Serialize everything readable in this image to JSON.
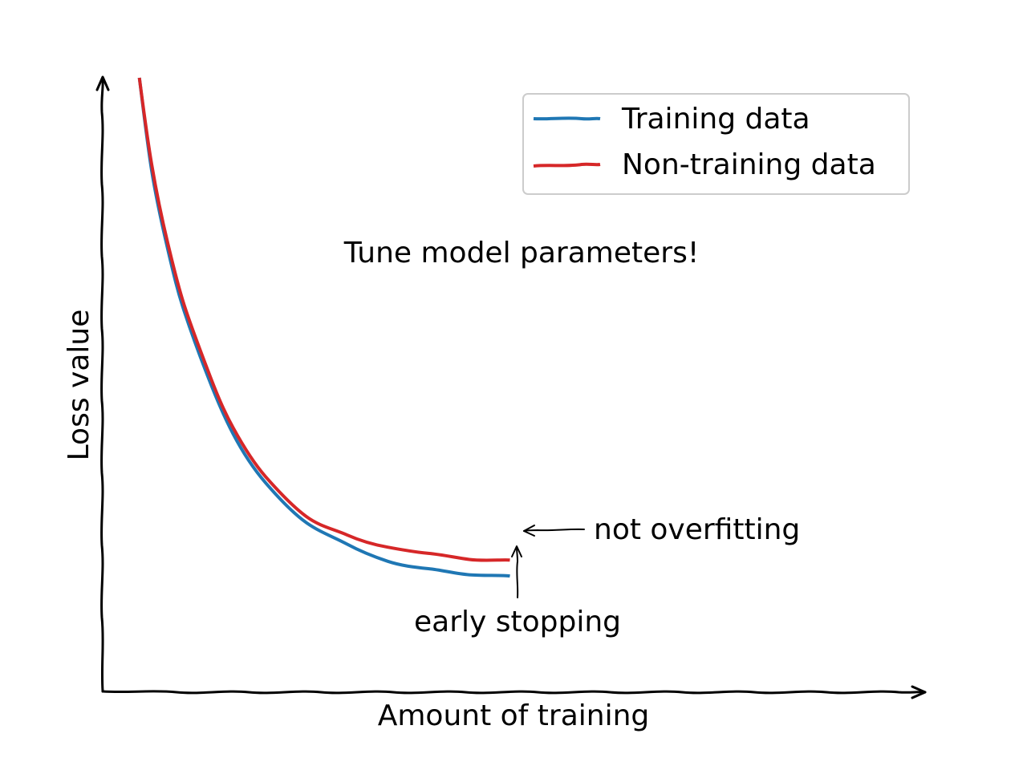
{
  "chart_data": {
    "type": "line",
    "style": "xkcd",
    "xlabel": "Amount of training",
    "ylabel": "Loss value",
    "xlim": [
      0,
      10
    ],
    "ylim": [
      0,
      10
    ],
    "grid": false,
    "ticks": false,
    "legend": {
      "position": "top-right",
      "entries": [
        "Training data",
        "Non-training data"
      ]
    },
    "series": [
      {
        "name": "Training data",
        "color": "#1f77b4",
        "x": [
          0.45,
          0.6,
          0.8,
          1.0,
          1.3,
          1.6,
          2.0,
          2.5,
          3.0,
          3.5,
          4.0,
          4.5,
          5.0
        ],
        "y": [
          10.0,
          8.5,
          7.2,
          6.2,
          5.1,
          4.2,
          3.4,
          2.75,
          2.4,
          2.12,
          2.0,
          1.9,
          1.88
        ]
      },
      {
        "name": "Non-training data",
        "color": "#d62728",
        "x": [
          0.45,
          0.6,
          0.8,
          1.0,
          1.3,
          1.6,
          2.0,
          2.5,
          3.0,
          3.5,
          4.0,
          4.5,
          5.0
        ],
        "y": [
          10.0,
          8.6,
          7.3,
          6.3,
          5.2,
          4.3,
          3.5,
          2.85,
          2.55,
          2.35,
          2.25,
          2.15,
          2.14
        ]
      }
    ],
    "annotations": [
      {
        "id": "tune",
        "text": "Tune model parameters!"
      },
      {
        "id": "not_overfitting",
        "text": "not overfitting"
      },
      {
        "id": "early_stopping",
        "text": "early stopping"
      }
    ]
  }
}
